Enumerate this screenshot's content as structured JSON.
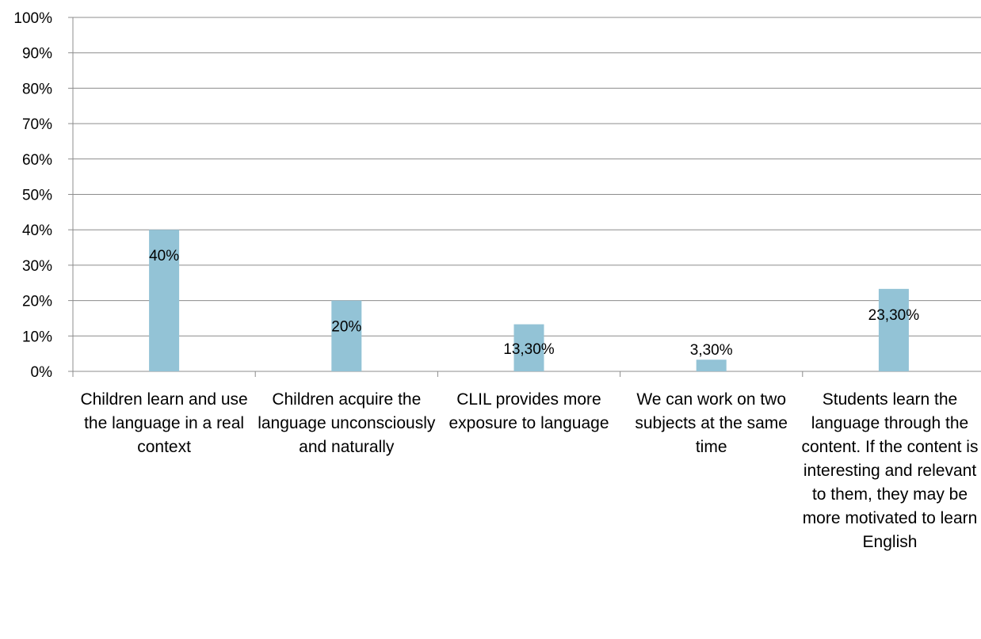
{
  "chart_data": {
    "type": "bar",
    "categories": [
      "Children learn and use the language in a real context",
      "Children acquire the language unconsciously and naturally",
      "CLIL provides more exposure to language",
      "We can work on two subjects at the same time",
      "Students learn the language through the content. If the content is interesting and relevant to them, they may be more motivated to learn English"
    ],
    "values": [
      40,
      20,
      13.3,
      3.3,
      23.3
    ],
    "data_labels": [
      "40%",
      "20%",
      "13,30%",
      "3,30%",
      "23,30%"
    ],
    "y_ticks": [
      "0%",
      "10%",
      "20%",
      "30%",
      "40%",
      "50%",
      "60%",
      "70%",
      "80%",
      "90%",
      "100%"
    ],
    "ylim": [
      0,
      100
    ],
    "title": "",
    "xlabel": "",
    "ylabel": "",
    "grid": true,
    "legend": "none",
    "colors": {
      "bar": "#93c3d6",
      "grid": "#8c8c8c",
      "axis": "#8c8c8c"
    }
  }
}
